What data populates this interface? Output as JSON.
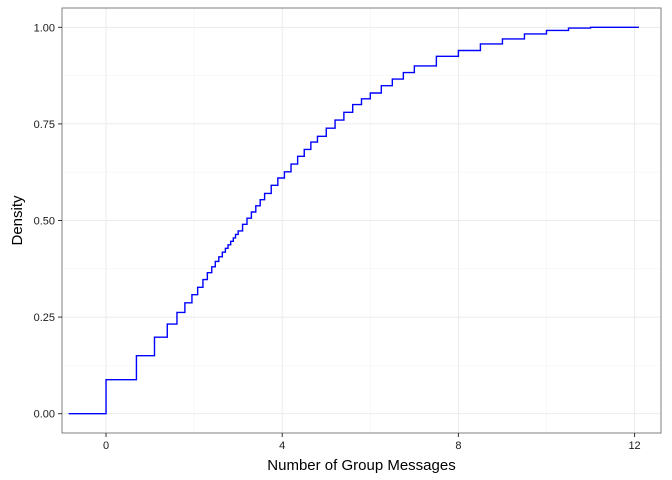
{
  "chart_data": {
    "type": "line",
    "step": true,
    "title": "",
    "xlabel": "Number of Group Messages",
    "ylabel": "Density",
    "xlim": [
      -1.0,
      12.6
    ],
    "ylim": [
      -0.05,
      1.05
    ],
    "x_ticks": [
      0,
      4,
      8,
      12
    ],
    "x_tick_labels": [
      "0",
      "4",
      "8",
      "12"
    ],
    "y_ticks": [
      0.0,
      0.25,
      0.5,
      0.75,
      1.0
    ],
    "y_tick_labels": [
      "0.00",
      "0.25",
      "0.50",
      "0.75",
      "1.00"
    ],
    "grid": true,
    "legend": "none",
    "colors": {
      "line": "#0000FF",
      "grid": "#EBEBEB",
      "frame": "#7F7F7F"
    },
    "series": [
      {
        "x": [
          -0.85,
          0.0,
          0.69,
          1.1,
          1.39,
          1.61,
          1.79,
          1.95,
          2.08,
          2.2,
          2.3,
          2.4,
          2.48,
          2.56,
          2.64,
          2.71,
          2.77,
          2.83,
          2.89,
          2.94,
          3.0,
          3.1,
          3.2,
          3.3,
          3.4,
          3.5,
          3.6,
          3.75,
          3.9,
          4.05,
          4.2,
          4.35,
          4.5,
          4.65,
          4.8,
          5.0,
          5.2,
          5.4,
          5.6,
          5.8,
          6.0,
          6.25,
          6.5,
          6.75,
          7.0,
          7.5,
          8.0,
          8.5,
          9.0,
          9.5,
          10.0,
          10.5,
          11.0,
          12.1
        ],
        "y": [
          0.0,
          0.088,
          0.15,
          0.198,
          0.232,
          0.262,
          0.287,
          0.308,
          0.327,
          0.347,
          0.365,
          0.38,
          0.394,
          0.406,
          0.418,
          0.428,
          0.437,
          0.446,
          0.455,
          0.464,
          0.473,
          0.49,
          0.506,
          0.522,
          0.538,
          0.554,
          0.57,
          0.591,
          0.61,
          0.626,
          0.646,
          0.666,
          0.684,
          0.703,
          0.718,
          0.739,
          0.76,
          0.78,
          0.8,
          0.815,
          0.83,
          0.849,
          0.866,
          0.883,
          0.9,
          0.925,
          0.94,
          0.957,
          0.97,
          0.983,
          0.992,
          0.998,
          1.0,
          1.0
        ]
      }
    ]
  }
}
